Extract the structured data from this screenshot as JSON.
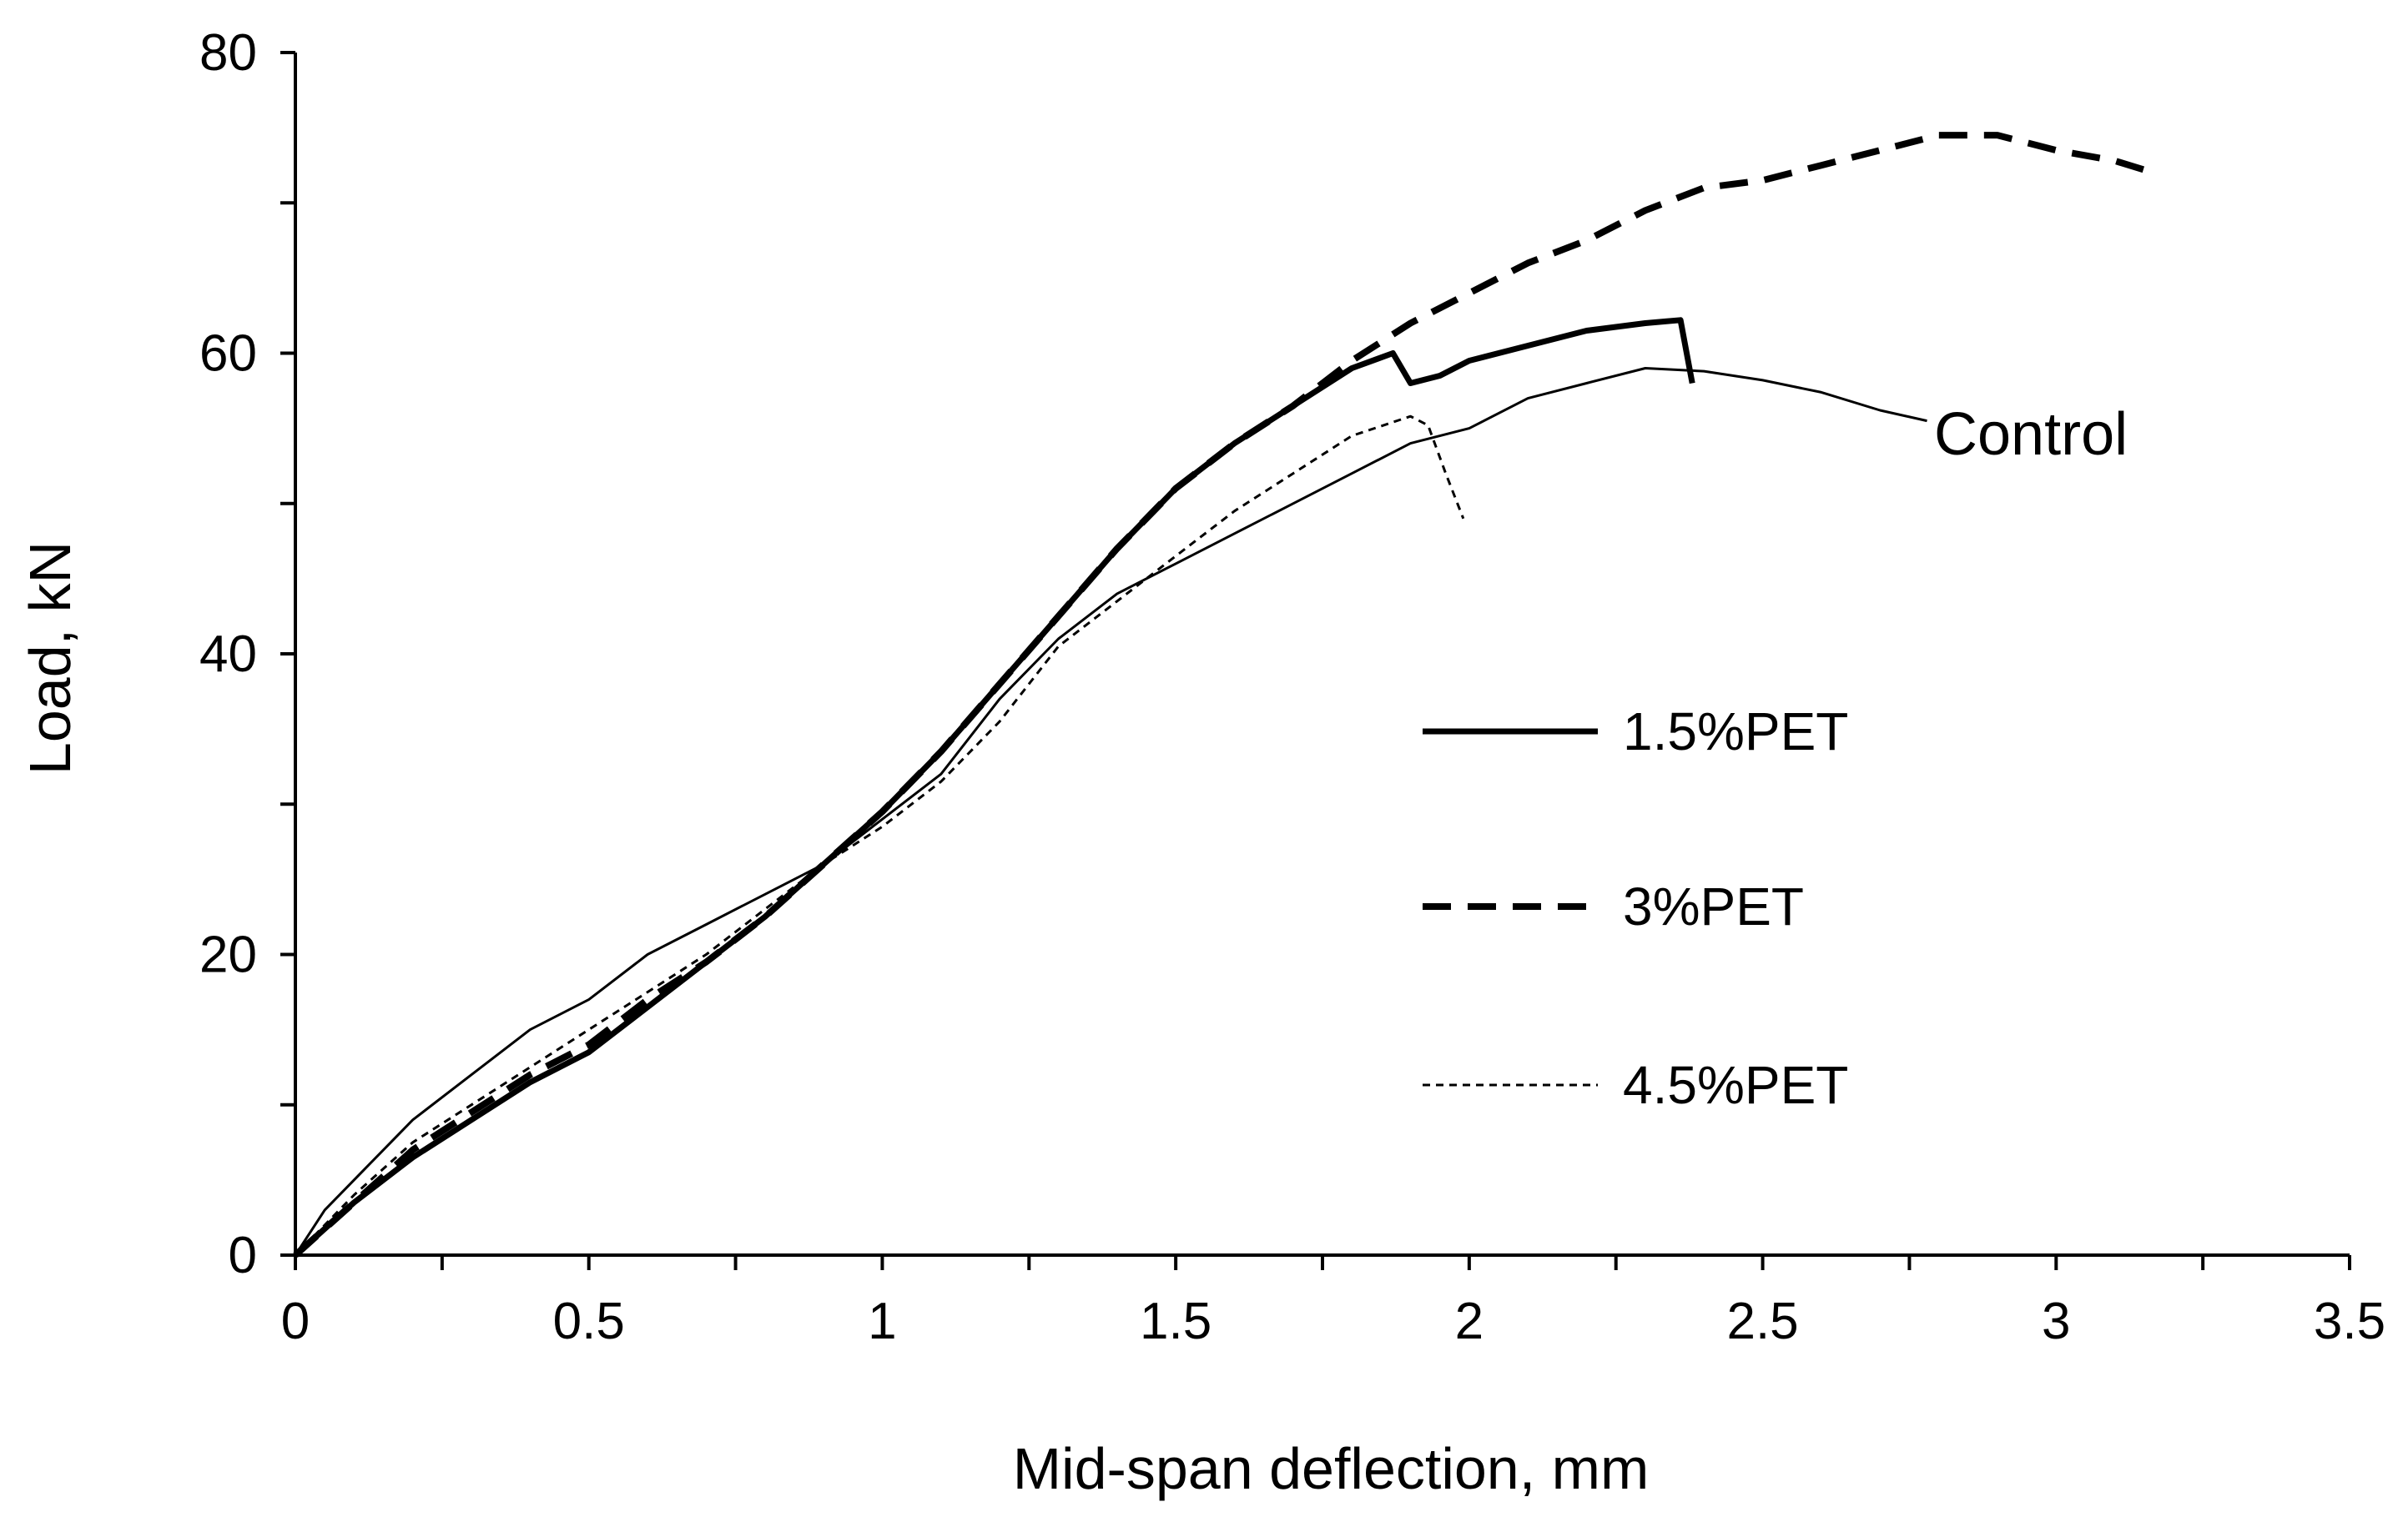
{
  "chart_data": {
    "type": "line",
    "title": "",
    "xlabel": "Mid-span deflection, mm",
    "ylabel": "Load, kN",
    "xlim": [
      0,
      3.5
    ],
    "ylim": [
      0,
      80
    ],
    "x_ticks": [
      0,
      0.5,
      1,
      1.5,
      2,
      2.5,
      3,
      3.5
    ],
    "x_tick_labels": [
      "0",
      "0.5",
      "1",
      "1.5",
      "2",
      "2.5",
      "3",
      "3.5"
    ],
    "y_ticks": [
      0,
      20,
      40,
      60,
      80
    ],
    "y_tick_labels": [
      "0",
      "20",
      "40",
      "60",
      "80"
    ],
    "grid": false,
    "legend_position": "center-right",
    "annotations": [
      {
        "text": "Control",
        "x": 2.8,
        "y": 55
      }
    ],
    "series": [
      {
        "name": "Control",
        "style": "thin-solid",
        "in_legend": false,
        "x": [
          0,
          0.05,
          0.1,
          0.2,
          0.3,
          0.4,
          0.5,
          0.6,
          0.7,
          0.8,
          0.9,
          1.0,
          1.1,
          1.2,
          1.3,
          1.4,
          1.5,
          1.6,
          1.7,
          1.8,
          1.9,
          2.0,
          2.1,
          2.2,
          2.3,
          2.4,
          2.5,
          2.6,
          2.7,
          2.78
        ],
        "y": [
          0,
          3,
          5,
          9,
          12,
          15,
          17,
          20,
          22,
          24,
          26,
          29,
          32,
          37,
          41,
          44,
          46,
          48,
          50,
          52,
          54,
          55,
          57,
          58,
          59,
          58.8,
          58.2,
          57.4,
          56.2,
          55.5
        ]
      },
      {
        "name": "1.5%PET",
        "style": "thick-solid",
        "in_legend": true,
        "x": [
          0,
          0.1,
          0.2,
          0.3,
          0.4,
          0.5,
          0.6,
          0.7,
          0.8,
          0.9,
          1.0,
          1.1,
          1.2,
          1.3,
          1.4,
          1.5,
          1.6,
          1.7,
          1.8,
          1.87,
          1.9,
          1.95,
          2.0,
          2.1,
          2.2,
          2.3,
          2.36,
          2.38
        ],
        "y": [
          0,
          3.5,
          6.5,
          9,
          11.5,
          13.5,
          16.5,
          19.5,
          22.5,
          26,
          29.5,
          33.5,
          38,
          42.5,
          47,
          51,
          54,
          56.5,
          59,
          60,
          58,
          58.5,
          59.5,
          60.5,
          61.5,
          62,
          62.2,
          58
        ]
      },
      {
        "name": "3%PET",
        "style": "thick-dashed",
        "in_legend": true,
        "x": [
          0,
          0.1,
          0.2,
          0.3,
          0.4,
          0.5,
          0.6,
          0.7,
          0.8,
          0.9,
          1.0,
          1.1,
          1.2,
          1.3,
          1.4,
          1.5,
          1.6,
          1.7,
          1.8,
          1.9,
          2.0,
          2.1,
          2.2,
          2.3,
          2.4,
          2.5,
          2.6,
          2.7,
          2.8,
          2.9,
          3.0,
          3.1,
          3.15
        ],
        "y": [
          0,
          3.5,
          7,
          9.5,
          12,
          14,
          17,
          19.5,
          22.5,
          26,
          29.5,
          33.5,
          38,
          42.5,
          47,
          51,
          54,
          56.5,
          59.5,
          62,
          64,
          66,
          67.5,
          69.5,
          71,
          71.5,
          72.5,
          73.5,
          74.5,
          74.5,
          73.5,
          72.8,
          72.2
        ]
      },
      {
        "name": "4.5%PET",
        "style": "thin-dotted",
        "in_legend": true,
        "x": [
          0,
          0.1,
          0.2,
          0.3,
          0.4,
          0.5,
          0.6,
          0.7,
          0.8,
          0.9,
          1.0,
          1.1,
          1.2,
          1.3,
          1.4,
          1.5,
          1.6,
          1.7,
          1.8,
          1.9,
          1.93,
          1.96,
          1.99
        ],
        "y": [
          0,
          4,
          7.5,
          10,
          12.5,
          15,
          17.5,
          20,
          23,
          26,
          28.5,
          31.5,
          35.5,
          40.5,
          43.5,
          46.5,
          49.5,
          52,
          54.5,
          55.8,
          55.2,
          52,
          49
        ]
      }
    ]
  }
}
